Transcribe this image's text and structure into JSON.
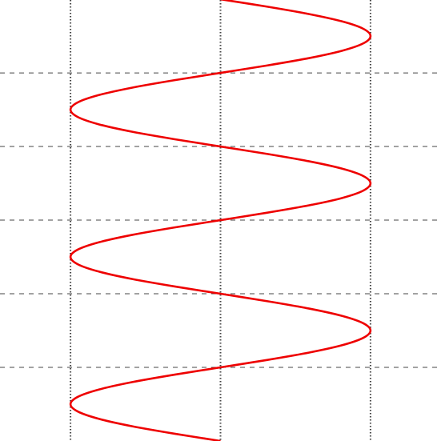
{
  "chart_data": {
    "type": "line",
    "xlim": [
      -1.47,
      1.47
    ],
    "xticks": [
      -1,
      0,
      1
    ],
    "ylim": [
      0,
      2.995
    ],
    "yticks": [
      0.5,
      1,
      1.5,
      2,
      2.5
    ],
    "grid": true,
    "series": [
      {
        "color": "#ee0000",
        "x": [
          0,
          -0.309,
          -0.588,
          -0.809,
          -0.951,
          -1,
          -0.951,
          -0.809,
          -0.588,
          -0.309,
          0,
          0.309,
          0.588,
          0.809,
          0.951,
          1,
          0.951,
          0.809,
          0.588,
          0.309,
          0,
          -0.309,
          -0.588,
          -0.809,
          -0.951,
          -1,
          -0.951,
          -0.809,
          -0.588,
          -0.309,
          0,
          0.309,
          0.588,
          0.809,
          0.951,
          1,
          0.951,
          0.809,
          0.588,
          0.309,
          0,
          -0.309,
          -0.588,
          -0.809,
          -0.951,
          -1,
          -0.951,
          -0.809,
          -0.588,
          -0.309,
          0,
          0.309,
          0.588,
          0.809,
          0.951,
          1,
          0.951,
          0.809,
          0.588,
          0.309,
          0
        ],
        "values": [
          0,
          0.05,
          0.1,
          0.15,
          0.2,
          0.25,
          0.3,
          0.35,
          0.4,
          0.45,
          0.5,
          0.55,
          0.6,
          0.65,
          0.7,
          0.75,
          0.8,
          0.85,
          0.9,
          0.95,
          1,
          1.05,
          1.1,
          1.15,
          1.2,
          1.25,
          1.3,
          1.35,
          1.4,
          1.45,
          1.5,
          1.55,
          1.6,
          1.65,
          1.7,
          1.75,
          1.8,
          1.85,
          1.9,
          1.95,
          2,
          2.05,
          2.1,
          2.15,
          2.2,
          2.25,
          2.3,
          2.35,
          2.4,
          2.45,
          2.5,
          2.55,
          2.6,
          2.65,
          2.7,
          2.75,
          2.8,
          2.85,
          2.9,
          2.95,
          3
        ]
      }
    ]
  }
}
